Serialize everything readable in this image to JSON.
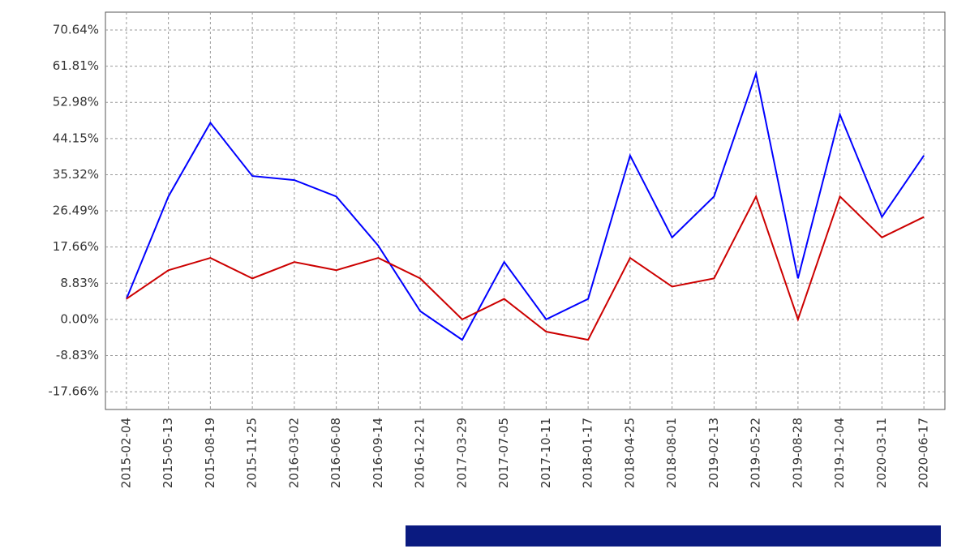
{
  "chart_data": {
    "type": "line",
    "categories": [
      "2015-02-04",
      "2015-05-13",
      "2015-08-19",
      "2015-11-25",
      "2016-03-02",
      "2016-06-08",
      "2016-09-14",
      "2016-12-21",
      "2017-03-29",
      "2017-07-05",
      "2017-10-11",
      "2018-01-17",
      "2018-04-25",
      "2018-08-01",
      "2019-02-13",
      "2019-05-22",
      "2019-08-28",
      "2019-12-04",
      "2020-03-11",
      "2020-06-17"
    ],
    "series": [
      {
        "color": "#0000ff",
        "values": [
          5,
          30,
          48,
          35,
          34,
          30,
          18,
          2,
          -5,
          14,
          0,
          5,
          40,
          20,
          30,
          60,
          10,
          50,
          25,
          40
        ]
      },
      {
        "color": "#cc0000",
        "values": [
          5,
          12,
          15,
          10,
          14,
          12,
          15,
          10,
          0,
          5,
          -3,
          -5,
          15,
          8,
          10,
          30,
          0,
          30,
          20,
          25
        ]
      }
    ],
    "ylim": [
      -22,
      75
    ],
    "yticks": [
      {
        "value": 70.64,
        "label": "70.64%"
      },
      {
        "value": 61.81,
        "label": "61.81%"
      },
      {
        "value": 52.98,
        "label": "52.98%"
      },
      {
        "value": 44.15,
        "label": "44.15%"
      },
      {
        "value": 35.32,
        "label": "35.32%"
      },
      {
        "value": 26.49,
        "label": "26.49%"
      },
      {
        "value": 17.66,
        "label": "17.66%"
      },
      {
        "value": 8.83,
        "label": "8.83%"
      },
      {
        "value": 0,
        "label": "0.00%"
      },
      {
        "value": -8.83,
        "label": "-8.83%"
      },
      {
        "value": -17.66,
        "label": "-17.66%"
      }
    ],
    "grid": true
  }
}
